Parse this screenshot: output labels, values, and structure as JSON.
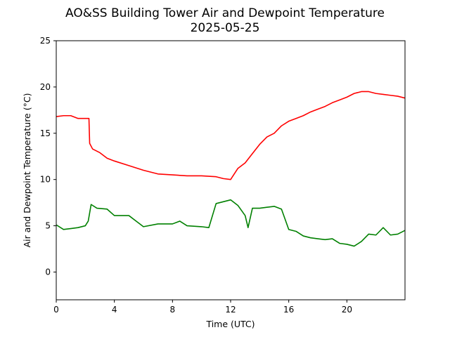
{
  "chart_data": {
    "type": "line",
    "title": "AO&SS Building Tower Air and Dewpoint Temperature",
    "subtitle": "2025-05-25",
    "xlabel": "Time (UTC)",
    "ylabel": "Air and Dewpoint Temperature (°C)",
    "xlim": [
      0,
      24
    ],
    "ylim": [
      -3,
      25
    ],
    "xticks": [
      0,
      4,
      8,
      12,
      16,
      20
    ],
    "yticks": [
      0,
      5,
      10,
      15,
      20,
      25
    ],
    "grid": false,
    "series": [
      {
        "color": "#ff0000",
        "x": [
          0,
          0.5,
          1.0,
          1.5,
          2.0,
          2.25,
          2.3,
          2.5,
          3.0,
          3.5,
          4.0,
          5.0,
          6.0,
          7.0,
          8.0,
          9.0,
          10.0,
          11.0,
          11.5,
          12.0,
          12.5,
          13.0,
          13.5,
          14.0,
          14.5,
          15.0,
          15.5,
          16.0,
          16.5,
          17.0,
          17.5,
          18.0,
          18.5,
          19.0,
          19.5,
          20.0,
          20.5,
          21.0,
          21.5,
          22.0,
          22.5,
          23.0,
          23.5,
          24.0
        ],
        "y": [
          16.8,
          16.9,
          16.9,
          16.6,
          16.6,
          16.6,
          13.9,
          13.3,
          12.9,
          12.3,
          12.0,
          11.5,
          11.0,
          10.6,
          10.5,
          10.4,
          10.4,
          10.3,
          10.1,
          10.0,
          11.2,
          11.8,
          12.8,
          13.8,
          14.6,
          15.0,
          15.8,
          16.3,
          16.6,
          16.9,
          17.3,
          17.6,
          17.9,
          18.3,
          18.6,
          18.9,
          19.3,
          19.5,
          19.5,
          19.3,
          19.2,
          19.1,
          19.0,
          18.8
        ]
      },
      {
        "color": "#008000",
        "x": [
          0,
          0.5,
          1.0,
          1.5,
          2.0,
          2.2,
          2.4,
          2.8,
          3.5,
          4.0,
          4.5,
          5.0,
          5.5,
          6.0,
          7.0,
          8.0,
          8.5,
          9.0,
          10.0,
          10.5,
          11.0,
          11.5,
          12.0,
          12.5,
          13.0,
          13.2,
          13.5,
          14.0,
          14.5,
          15.0,
          15.5,
          16.0,
          16.5,
          17.0,
          17.5,
          18.0,
          18.5,
          19.0,
          19.5,
          20.0,
          20.5,
          21.0,
          21.5,
          22.0,
          22.5,
          23.0,
          23.5,
          24.0
        ],
        "y": [
          5.1,
          4.6,
          4.7,
          4.8,
          5.0,
          5.5,
          7.3,
          6.9,
          6.8,
          6.1,
          6.1,
          6.1,
          5.5,
          4.9,
          5.2,
          5.2,
          5.5,
          5.0,
          4.9,
          4.8,
          7.4,
          7.6,
          7.8,
          7.2,
          6.1,
          4.8,
          6.9,
          6.9,
          7.0,
          7.1,
          6.8,
          4.6,
          4.4,
          3.9,
          3.7,
          3.6,
          3.5,
          3.6,
          3.1,
          3.0,
          2.8,
          3.3,
          4.1,
          4.0,
          4.8,
          4.0,
          4.1,
          4.5
        ]
      }
    ]
  }
}
